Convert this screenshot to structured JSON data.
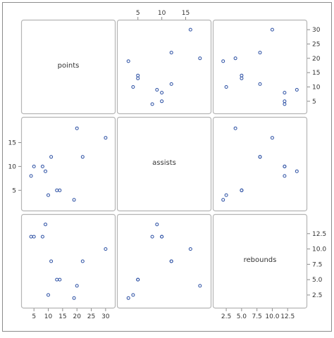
{
  "chart_data": {
    "type": "scatter",
    "subtype": "scatter-matrix",
    "variables": [
      "points",
      "assists",
      "rebounds"
    ],
    "observations": {
      "points": [
        19,
        10,
        13,
        14,
        30,
        22,
        20,
        4,
        9,
        11,
        8,
        5
      ],
      "assists": [
        3,
        4,
        5,
        5,
        16,
        12,
        18,
        8,
        9,
        12,
        10,
        10
      ],
      "rebounds": [
        2,
        2.5,
        5,
        5,
        10,
        8,
        4,
        12,
        14,
        8,
        12,
        12
      ]
    },
    "axes": {
      "points": {
        "ylim": [
          2,
          32
        ],
        "ticks": [
          5,
          10,
          15,
          20,
          25,
          30
        ]
      },
      "assists": {
        "ylim": [
          1.5,
          19.5
        ],
        "ticks": [
          5,
          10,
          15
        ]
      },
      "rebounds": {
        "ylim": [
          1,
          15
        ],
        "ticks": [
          2.5,
          5.0,
          7.5,
          10.0,
          12.5
        ]
      }
    },
    "tick_labels": {
      "points": [
        "5",
        "10",
        "15",
        "20",
        "25",
        "30"
      ],
      "assists": [
        "5",
        "10",
        "15"
      ],
      "rebounds": [
        "2.5",
        "5.0",
        "7.5",
        "10.0",
        "12.5"
      ]
    },
    "tick_label_positions": {
      "top": [
        "assists"
      ],
      "right": [
        "points",
        "rebounds"
      ],
      "left": [
        "assists"
      ],
      "bottom": [
        "points",
        "rebounds"
      ]
    },
    "grid": false,
    "marker": "open-circle",
    "colors": {
      "marker": "#2b4fa3",
      "frame": "#8c8c8c",
      "panel_border": "#b4b4b4",
      "text": "#333333"
    }
  }
}
